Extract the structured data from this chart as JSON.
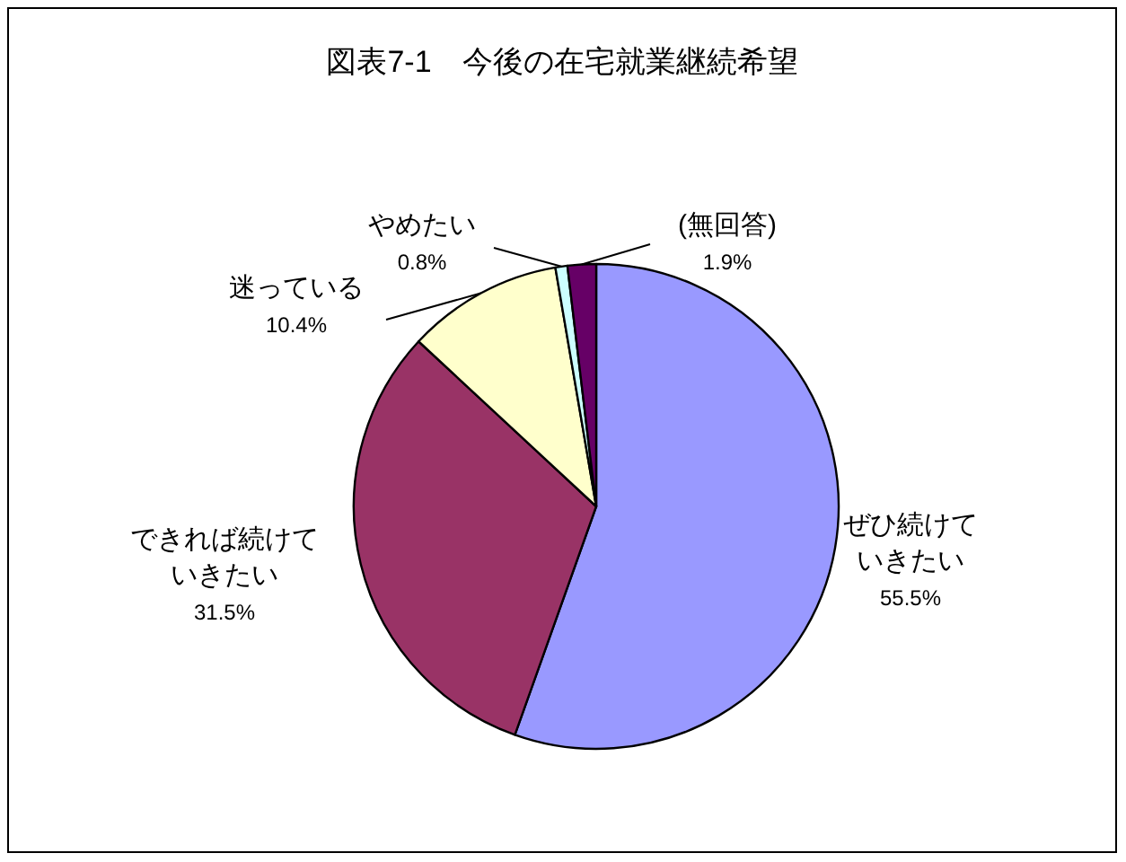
{
  "chart_data": {
    "type": "pie",
    "title": "図表7-1　今後の在宅就業継続希望",
    "categories": [
      "ぜひ続けていきたい",
      "できれば続けていきたい",
      "迷っている",
      "やめたい",
      "(無回答)"
    ],
    "value_labels": [
      "55.5%",
      "31.5%",
      "10.4%",
      "0.8%",
      "1.9%"
    ],
    "values": [
      55.5,
      31.5,
      10.4,
      0.8,
      1.9
    ],
    "colors": [
      "#9999ff",
      "#993366",
      "#ffffcc",
      "#ccffff",
      "#660066"
    ]
  }
}
